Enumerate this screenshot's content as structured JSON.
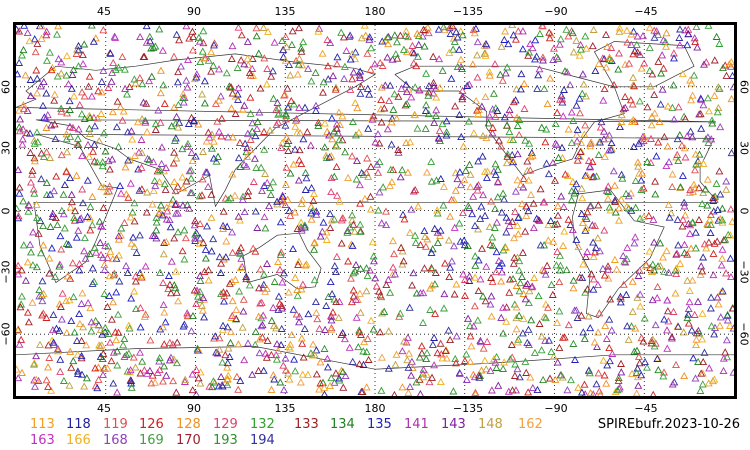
{
  "map": {
    "lon_ticks_top": [
      "45",
      "90",
      "135",
      "180",
      "−135",
      "−90",
      "−45"
    ],
    "lon_ticks_bottom": [
      "45",
      "90",
      "135",
      "180",
      "−135",
      "−90",
      "−45"
    ],
    "lat_ticks": [
      "60",
      "30",
      "0",
      "−30",
      "−60"
    ],
    "lon_range": [
      0,
      360
    ],
    "lat_range": [
      -90,
      90
    ],
    "gridlines": "dotted at 45° longitude and 30° latitude intervals",
    "marker": "open-triangle"
  },
  "legend": [
    {
      "label": "113",
      "color": "#f0a020"
    },
    {
      "label": "118",
      "color": "#2020a0"
    },
    {
      "label": "119",
      "color": "#e05050"
    },
    {
      "label": "126",
      "color": "#d02020"
    },
    {
      "label": "128",
      "color": "#f09020"
    },
    {
      "label": "129",
      "color": "#e04070"
    },
    {
      "label": "132",
      "color": "#30a030"
    },
    {
      "label": "133",
      "color": "#a02020"
    },
    {
      "label": "134",
      "color": "#208020"
    },
    {
      "label": "135",
      "color": "#2020c0"
    },
    {
      "label": "141",
      "color": "#b030b0"
    },
    {
      "label": "143",
      "color": "#8020a0"
    },
    {
      "label": "148",
      "color": "#c0a040"
    },
    {
      "label": "162",
      "color": "#f0a040"
    },
    {
      "label": "163",
      "color": "#c030c0"
    },
    {
      "label": "166",
      "color": "#f0b020"
    },
    {
      "label": "168",
      "color": "#9040c0"
    },
    {
      "label": "169",
      "color": "#40a040"
    },
    {
      "label": "170",
      "color": "#a02030"
    },
    {
      "label": "193",
      "color": "#309030"
    },
    {
      "label": "194",
      "color": "#3030a0"
    }
  ],
  "title": "SPIREbufr.2023-10-26"
}
